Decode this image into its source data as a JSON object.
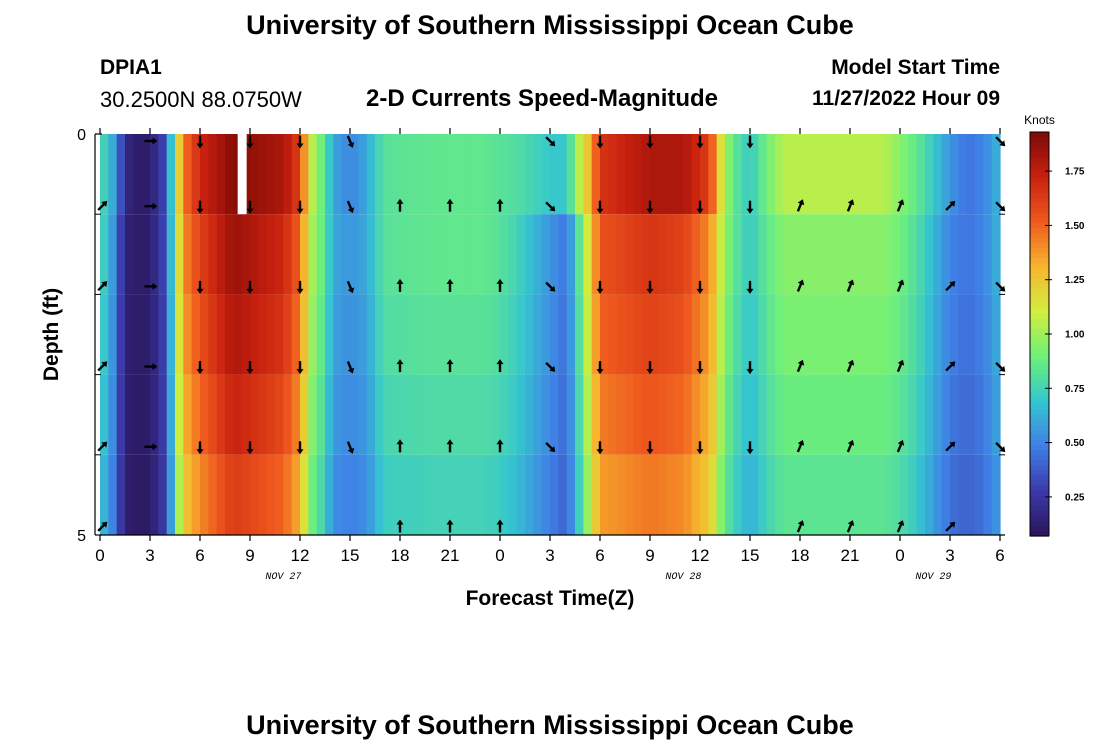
{
  "header": {
    "title": "University of Southern Mississippi Ocean Cube",
    "station_id": "DPIA1",
    "station_coords": "30.2500N  88.0750W",
    "plot_title": "2-D Currents Speed-Magnitude",
    "model_label": "Model Start Time",
    "model_time": "11/27/2022 Hour 09"
  },
  "footer": {
    "title": "University of Southern Mississippi Ocean Cube"
  },
  "chart_data": {
    "type": "heatmap",
    "title": "2-D Currents Speed-Magnitude",
    "xlabel": "Forecast Time(Z)",
    "ylabel": "Depth (ft)",
    "x_ticks": [
      "0",
      "3",
      "6",
      "9",
      "12",
      "15",
      "18",
      "21",
      "0",
      "3",
      "6",
      "9",
      "12",
      "15",
      "18",
      "21",
      "0",
      "3",
      "6"
    ],
    "x_hours": [
      0,
      3,
      6,
      9,
      12,
      15,
      18,
      21,
      24,
      27,
      30,
      33,
      36,
      39,
      42,
      45,
      48,
      51,
      54
    ],
    "date_labels": [
      {
        "text": "NOV 27",
        "hour": 11
      },
      {
        "text": "NOV 28",
        "hour": 35
      },
      {
        "text": "NOV 29",
        "hour": 50
      }
    ],
    "y_ticks": [
      "0",
      "5"
    ],
    "ylim": [
      0,
      5
    ],
    "xlim": [
      0,
      54
    ],
    "colorbar": {
      "label": "Knots",
      "ticks": [
        "0.25",
        "0.50",
        "0.75",
        "1.00",
        "1.25",
        "1.50",
        "1.75"
      ],
      "range": [
        0.07,
        1.93
      ],
      "colors": [
        "#2a1458",
        "#3b3aa8",
        "#3f7fe6",
        "#35c6cf",
        "#6ef07a",
        "#d2ee3e",
        "#f7b52e",
        "#ef5a1e",
        "#c8200f",
        "#7c0a06"
      ]
    },
    "depth_layers": 5,
    "speed_profile_hours": [
      0,
      0.8,
      1.5,
      2,
      3,
      4,
      4.5,
      5,
      6,
      8,
      11,
      12,
      12.6,
      13.4,
      14,
      15,
      16,
      17,
      20,
      23,
      24,
      25,
      26,
      27,
      28,
      28.6,
      29.4,
      30,
      33,
      35,
      36.6,
      37.4,
      38,
      39,
      40,
      41,
      45,
      47,
      48,
      49,
      50,
      51,
      52,
      53,
      54
    ],
    "speed_profile_knots": [
      0.8,
      0.55,
      0.15,
      0.12,
      0.12,
      0.35,
      0.95,
      1.4,
      1.6,
      1.85,
      1.7,
      1.5,
      1.05,
      0.85,
      0.6,
      0.55,
      0.6,
      0.82,
      0.85,
      0.85,
      0.82,
      0.75,
      0.65,
      0.55,
      0.45,
      0.75,
      1.2,
      1.55,
      1.65,
      1.6,
      1.4,
      1.0,
      0.85,
      0.7,
      0.85,
      0.95,
      0.95,
      0.95,
      0.9,
      0.8,
      0.65,
      0.5,
      0.45,
      0.5,
      0.65
    ],
    "surface_profile_knots": [
      0.8,
      0.6,
      0.2,
      0.12,
      0.12,
      0.35,
      1.0,
      1.45,
      1.7,
      1.9,
      1.8,
      1.6,
      1.1,
      0.85,
      0.6,
      0.5,
      0.6,
      0.82,
      0.85,
      0.85,
      0.82,
      0.8,
      0.75,
      0.7,
      0.7,
      1.0,
      1.3,
      1.65,
      1.8,
      1.8,
      1.6,
      1.05,
      0.85,
      0.7,
      0.9,
      1.05,
      1.05,
      1.05,
      0.95,
      0.85,
      0.7,
      0.55,
      0.45,
      0.5,
      0.65
    ],
    "vector_hours": [
      0,
      3,
      6,
      9,
      12,
      15,
      18,
      21,
      24,
      27,
      30,
      33,
      36,
      39,
      42,
      45,
      48,
      51,
      54
    ],
    "vector_dirs": [
      "NE",
      "E",
      "S",
      "S",
      "S",
      "SSE",
      "N",
      "N",
      "N",
      "SE",
      "S",
      "S",
      "S",
      "S",
      "NNE",
      "NNE",
      "NNE",
      "NE",
      "SE"
    ],
    "missing_cell": {
      "hour": 8.5,
      "depth_layer": 0
    }
  }
}
